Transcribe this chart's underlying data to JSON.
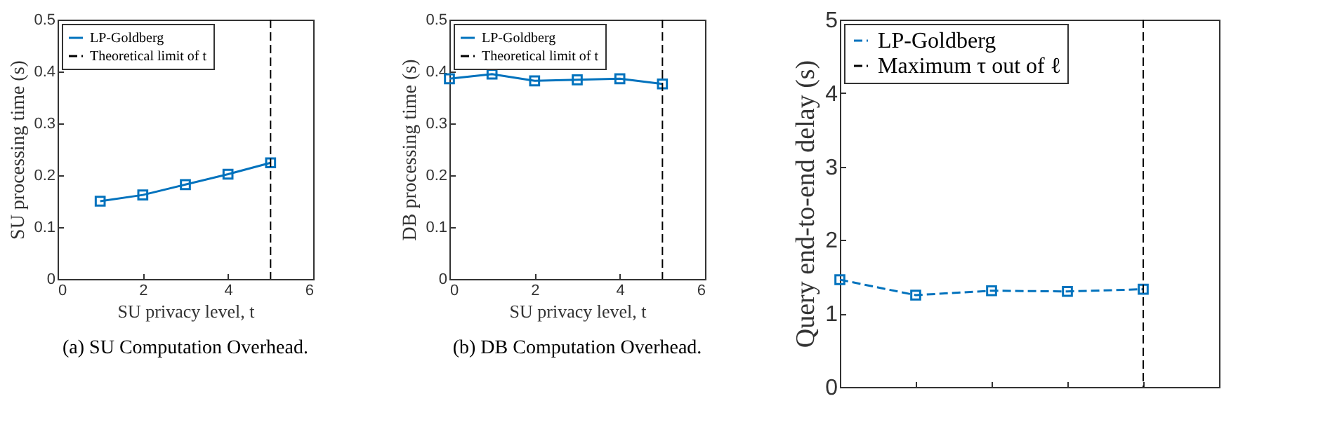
{
  "chart_data": [
    {
      "type": "line",
      "title": "(a) SU Computation Overhead.",
      "xlabel": "SU privacy level, t",
      "ylabel": "SU processing time (s)",
      "x": [
        1,
        2,
        3,
        4,
        5
      ],
      "series": [
        {
          "name": "LP-Goldberg",
          "color": "#0072bd",
          "values": [
            0.15,
            0.162,
            0.182,
            0.202,
            0.224
          ]
        }
      ],
      "xlim": [
        0,
        6
      ],
      "xticks": [
        0,
        2,
        4,
        6
      ],
      "ylim": [
        0,
        0.5
      ],
      "yticks": [
        0,
        0.1,
        0.2,
        0.3,
        0.4,
        0.5
      ],
      "marker": "square",
      "line_style": "solid",
      "legend": "top left",
      "ref_lines": [
        {
          "axis": "x",
          "value": 5,
          "label": "Theoretical limit of t",
          "color": "#000000",
          "line_style": "dashed"
        }
      ]
    },
    {
      "type": "line",
      "title": "(b) DB Computation Overhead.",
      "xlabel": "SU privacy level, t",
      "ylabel": "DB processing time (s)",
      "x": [
        0,
        1,
        2,
        3,
        4,
        5
      ],
      "series": [
        {
          "name": "LP-Goldberg",
          "color": "#0072bd",
          "values": [
            0.386,
            0.395,
            0.382,
            0.384,
            0.386,
            0.376
          ]
        }
      ],
      "xlim": [
        0,
        6
      ],
      "xticks": [
        0,
        2,
        4,
        6
      ],
      "ylim": [
        0,
        0.5
      ],
      "yticks": [
        0,
        0.1,
        0.2,
        0.3,
        0.4,
        0.5
      ],
      "marker": "square",
      "line_style": "solid",
      "legend": "top left",
      "ref_lines": [
        {
          "axis": "x",
          "value": 5,
          "label": "Theoretical limit of t",
          "color": "#000000",
          "line_style": "dashed"
        }
      ]
    },
    {
      "type": "line",
      "ylabel": "Query end-to-end delay (s)",
      "categories": [
        null,
        null,
        null,
        null,
        null,
        null
      ],
      "series": [
        {
          "name": "LP-Goldberg",
          "color": "#0072bd",
          "values": [
            1.46,
            1.25,
            1.31,
            1.3,
            1.33,
            null
          ]
        }
      ],
      "ylim": [
        0,
        5
      ],
      "yticks": [
        0,
        1,
        2,
        3,
        4,
        5
      ],
      "tick_labels": "y",
      "marker": "square",
      "line_style": "dashed",
      "legend": "top left",
      "ref_lines": [
        {
          "axis": "x",
          "label": "Maximum τ out of ℓ",
          "color": "#000000",
          "line_style": "dashed"
        }
      ]
    }
  ]
}
